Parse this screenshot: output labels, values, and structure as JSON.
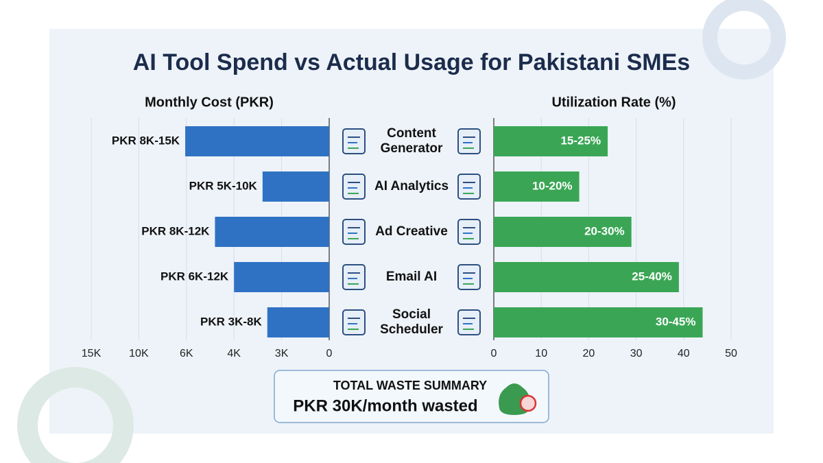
{
  "chart_data": {
    "type": "butterfly_bar",
    "title": "AI Tool Spend vs Actual Usage for Pakistani SMEs",
    "categories": [
      "Content\nGenerator",
      "AI Analytics",
      "Ad Creative",
      "Email AI",
      "Social\nScheduler"
    ],
    "left": {
      "axis_label": "Monthly Cost (PKR)",
      "color": "#2f72c4",
      "values": [
        6100,
        3400,
        4800,
        4000,
        3300
      ],
      "range_labels": [
        "PKR 8K-15K",
        "PKR 5K-10K",
        "PKR 8K-12K",
        "PKR 6K-12K",
        "PKR 3K-8K"
      ],
      "xlim": [
        15000,
        0
      ],
      "xticks": [
        {
          "value": 15000,
          "label": "15K"
        },
        {
          "value": 10000,
          "label": "10K"
        },
        {
          "value": 6000,
          "label": "6K"
        },
        {
          "value": 4000,
          "label": "4K"
        },
        {
          "value": 3000,
          "label": "3K"
        },
        0
      ]
    },
    "right": {
      "axis_label": "Utilization Rate (%)",
      "color": "#3aa655",
      "values": [
        24,
        18,
        29,
        39,
        44
      ],
      "range_labels": [
        "15-25%",
        "10-20%",
        "20-30%",
        "25-40%",
        "30-45%"
      ],
      "xlim": [
        0,
        50
      ],
      "xticks": [
        0,
        10,
        20,
        30,
        40,
        50
      ]
    },
    "grid": true
  },
  "summary": {
    "heading": "TOTAL WASTE SUMMARY",
    "text": "PKR 30K/month wasted"
  }
}
